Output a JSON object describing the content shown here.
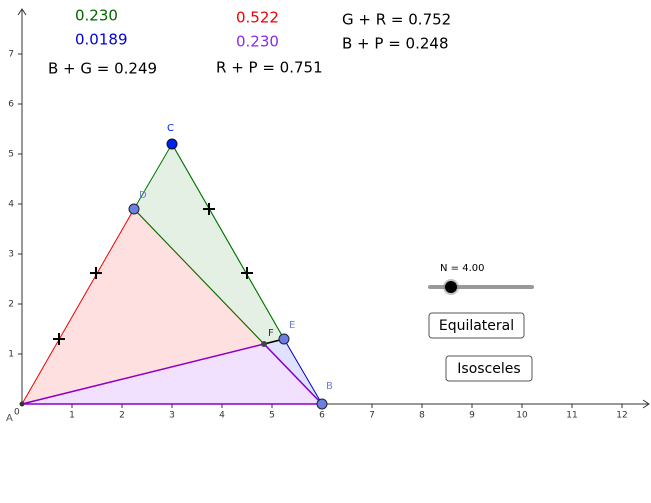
{
  "readouts": [
    "0.230",
    "0.0189",
    "B + G = 0.249",
    "0.522",
    "0.230",
    "R + P = 0.751",
    "G + R = 0.752",
    "B + P = 0.248"
  ],
  "points": {
    "A": "A",
    "B": "B",
    "C": "C",
    "D": "D",
    "E": "E",
    "F": "F"
  },
  "origin_label": "0",
  "x_axis_labels": [
    "1",
    "2",
    "3",
    "4",
    "5",
    "6",
    "7",
    "8",
    "9",
    "10",
    "11",
    "12"
  ],
  "y_axis_labels": [
    "1",
    "2",
    "3",
    "4",
    "5",
    "6",
    "7"
  ],
  "slider": {
    "label": "N = 4.00"
  },
  "buttons": [
    "Equilateral",
    "Isosceles"
  ]
}
